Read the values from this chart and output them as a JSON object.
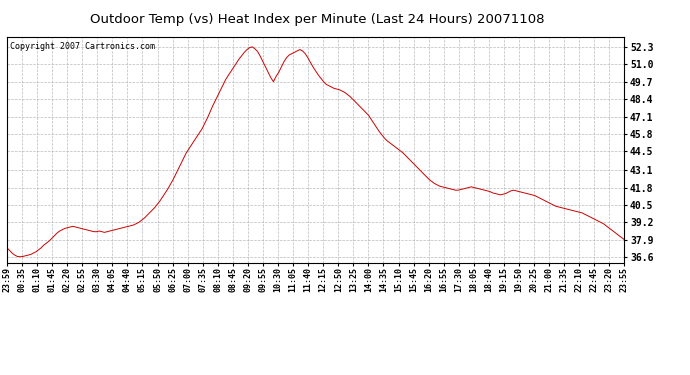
{
  "title": "Outdoor Temp (vs) Heat Index per Minute (Last 24 Hours) 20071108",
  "copyright_text": "Copyright 2007 Cartronics.com",
  "line_color": "#cc0000",
  "background_color": "#ffffff",
  "grid_color": "#aaaaaa",
  "yticks": [
    36.6,
    37.9,
    39.2,
    40.5,
    41.8,
    43.1,
    44.5,
    45.8,
    47.1,
    48.4,
    49.7,
    51.0,
    52.3
  ],
  "ymin": 36.2,
  "ymax": 53.0,
  "xtick_labels": [
    "23:59",
    "00:35",
    "01:10",
    "01:45",
    "02:20",
    "02:55",
    "03:30",
    "04:05",
    "04:40",
    "05:15",
    "05:50",
    "06:25",
    "07:00",
    "07:35",
    "08:10",
    "08:45",
    "09:20",
    "09:55",
    "10:30",
    "11:05",
    "11:40",
    "12:15",
    "12:50",
    "13:25",
    "14:00",
    "14:35",
    "15:10",
    "15:45",
    "16:20",
    "16:55",
    "17:30",
    "18:05",
    "18:40",
    "19:15",
    "19:50",
    "20:25",
    "21:00",
    "21:35",
    "22:10",
    "22:45",
    "23:20",
    "23:55"
  ],
  "curve": [
    37.3,
    37.1,
    36.9,
    36.75,
    36.65,
    36.63,
    36.65,
    36.7,
    36.75,
    36.8,
    36.9,
    37.0,
    37.15,
    37.3,
    37.5,
    37.65,
    37.8,
    38.0,
    38.2,
    38.4,
    38.55,
    38.65,
    38.75,
    38.8,
    38.85,
    38.9,
    38.85,
    38.8,
    38.75,
    38.7,
    38.65,
    38.6,
    38.55,
    38.5,
    38.5,
    38.55,
    38.5,
    38.45,
    38.5,
    38.55,
    38.6,
    38.65,
    38.7,
    38.75,
    38.8,
    38.85,
    38.9,
    38.95,
    39.0,
    39.1,
    39.2,
    39.35,
    39.5,
    39.7,
    39.9,
    40.1,
    40.3,
    40.55,
    40.8,
    41.1,
    41.4,
    41.7,
    42.05,
    42.4,
    42.8,
    43.2,
    43.6,
    44.0,
    44.4,
    44.7,
    45.0,
    45.3,
    45.6,
    45.9,
    46.2,
    46.6,
    47.0,
    47.45,
    47.9,
    48.3,
    48.7,
    49.1,
    49.5,
    49.9,
    50.2,
    50.5,
    50.8,
    51.1,
    51.4,
    51.65,
    51.9,
    52.1,
    52.25,
    52.3,
    52.15,
    51.95,
    51.6,
    51.2,
    50.8,
    50.4,
    50.0,
    49.7,
    50.1,
    50.4,
    50.8,
    51.2,
    51.5,
    51.7,
    51.8,
    51.9,
    52.0,
    52.1,
    52.0,
    51.8,
    51.5,
    51.15,
    50.8,
    50.5,
    50.2,
    49.95,
    49.7,
    49.5,
    49.4,
    49.3,
    49.2,
    49.15,
    49.1,
    49.0,
    48.9,
    48.75,
    48.6,
    48.4,
    48.2,
    48.0,
    47.8,
    47.6,
    47.4,
    47.2,
    46.9,
    46.6,
    46.3,
    46.0,
    45.75,
    45.5,
    45.3,
    45.15,
    45.0,
    44.85,
    44.7,
    44.55,
    44.4,
    44.2,
    44.0,
    43.8,
    43.6,
    43.4,
    43.2,
    43.0,
    42.8,
    42.6,
    42.4,
    42.25,
    42.1,
    42.0,
    41.9,
    41.85,
    41.8,
    41.75,
    41.7,
    41.65,
    41.6,
    41.6,
    41.65,
    41.7,
    41.75,
    41.8,
    41.85,
    41.8,
    41.75,
    41.7,
    41.65,
    41.6,
    41.55,
    41.5,
    41.4,
    41.35,
    41.3,
    41.25,
    41.3,
    41.35,
    41.45,
    41.55,
    41.6,
    41.55,
    41.5,
    41.45,
    41.4,
    41.35,
    41.3,
    41.25,
    41.2,
    41.1,
    41.0,
    40.9,
    40.8,
    40.7,
    40.6,
    40.5,
    40.4,
    40.35,
    40.3,
    40.25,
    40.2,
    40.15,
    40.1,
    40.05,
    40.0,
    39.95,
    39.9,
    39.8,
    39.7,
    39.6,
    39.5,
    39.4,
    39.3,
    39.2,
    39.1,
    38.95,
    38.8,
    38.65,
    38.5,
    38.35,
    38.2,
    38.05,
    37.9
  ]
}
